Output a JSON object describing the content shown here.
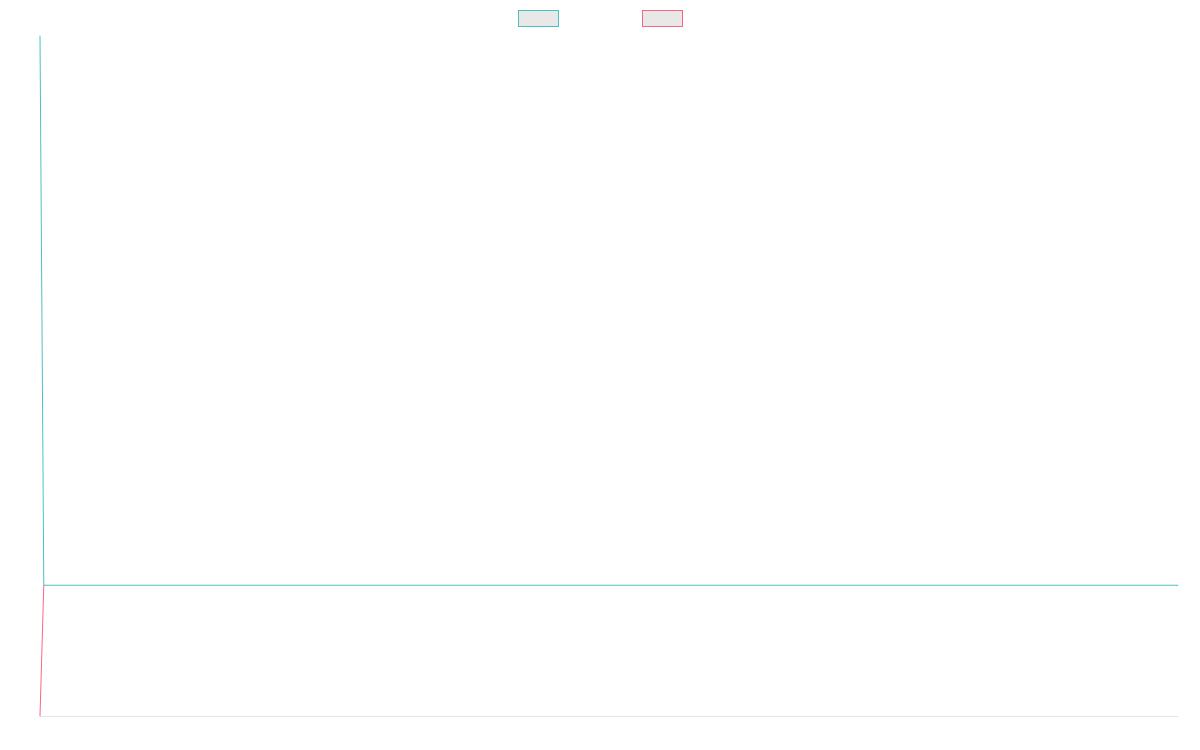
{
  "chart_data": {
    "type": "line",
    "title": "",
    "xlabel": "",
    "ylabel": "",
    "grid": false,
    "legend_position": "top-center",
    "x": [
      0,
      1,
      2
    ],
    "xlim": [
      0,
      300
    ],
    "ylim": [
      -1,
      4.2
    ],
    "series": [
      {
        "name": "",
        "color": "#4bc0c0",
        "fill": "#e8e8e8",
        "points": [
          [
            0,
            4.2
          ],
          [
            1,
            0
          ],
          [
            300,
            0
          ]
        ]
      },
      {
        "name": "",
        "color": "#ff6384",
        "fill": "#e8e8e8",
        "points": [
          [
            0,
            -1
          ],
          [
            1,
            0
          ]
        ]
      }
    ],
    "baseline_color": "#e6e6e6"
  }
}
